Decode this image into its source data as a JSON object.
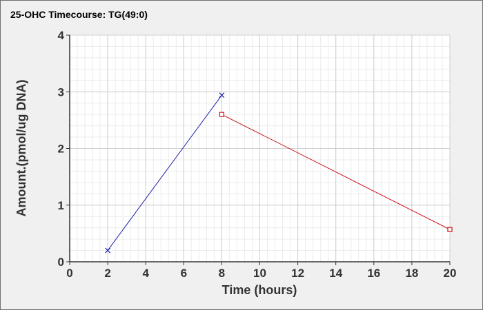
{
  "chart_data": {
    "type": "line",
    "title": "25-OHC Timecourse: TG(49:0)",
    "xlabel": "Time (hours)",
    "ylabel": "Amount.(pmol/ug DNA)",
    "xlim": [
      0,
      20
    ],
    "ylim": [
      0,
      4
    ],
    "x_ticks": [
      0,
      2,
      4,
      6,
      8,
      10,
      12,
      14,
      16,
      18,
      20
    ],
    "y_ticks": [
      0,
      1,
      2,
      3,
      4
    ],
    "grid": true,
    "series": [
      {
        "color": "#1f1fa8",
        "marker": "x",
        "x": [
          2,
          8
        ],
        "y": [
          0.2,
          2.94
        ]
      },
      {
        "color": "#cc1111",
        "marker": "square",
        "x": [
          8,
          20
        ],
        "y": [
          2.6,
          0.57
        ]
      }
    ]
  }
}
